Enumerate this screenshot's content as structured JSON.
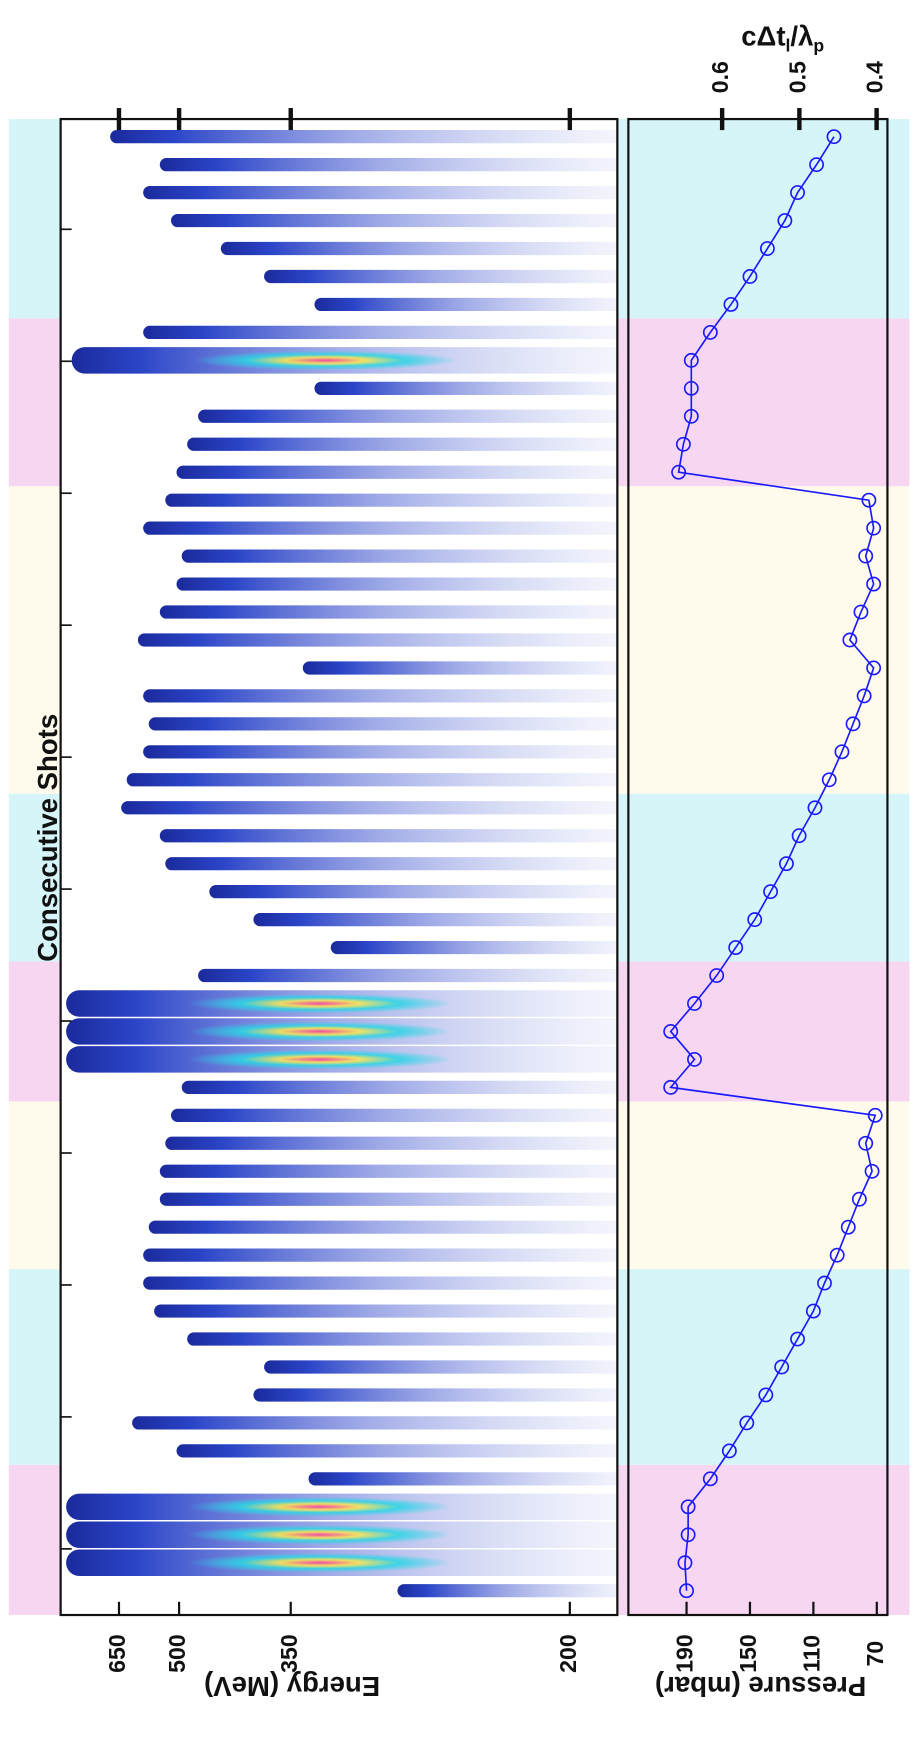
{
  "chart_data": [
    {
      "type": "spectra",
      "title": "Consecutive Shots",
      "xlabel": "Energy (MeV)",
      "xscale": "reciprocal",
      "xlim": [
        917,
        186.4
      ],
      "xticks": [
        650,
        500,
        350,
        200
      ],
      "shotlim": [
        0.13,
        53.63
      ],
      "color": "#1b2a9c",
      "peak_energy": [
        272,
        883,
        883,
        883,
        334,
        505,
        610,
        389,
        377,
        485,
        553,
        580,
        580,
        566,
        540,
        540,
        528,
        516,
        495,
        883,
        883,
        883,
        466,
        316,
        389,
        448,
        528,
        540,
        643,
        626,
        580,
        566,
        580,
        339,
        594,
        540,
        505,
        495,
        580,
        528,
        505,
        485,
        466,
        329,
        851,
        580,
        329,
        377,
        431,
        516,
        580,
        540,
        680
      ],
      "bands": [
        {
          "from": 1,
          "to": 5,
          "color": "#f7d6f1"
        },
        {
          "from": 6,
          "to": 12,
          "color": "#d6f5f8"
        },
        {
          "from": 13,
          "to": 18,
          "color": "#fefbec"
        },
        {
          "from": 19,
          "to": 23,
          "color": "#f7d6f1"
        },
        {
          "from": 24,
          "to": 29,
          "color": "#d6f5f8"
        },
        {
          "from": 30,
          "to": 40,
          "color": "#fefbec"
        },
        {
          "from": 41,
          "to": 46,
          "color": "#f7d6f1"
        },
        {
          "from": 47,
          "to": 53,
          "color": "#d6f5f8"
        }
      ]
    },
    {
      "type": "line",
      "ylabel": "Pressure (mbar)",
      "y2label": [
        "cΔt",
        "l",
        "/λ",
        "p"
      ],
      "categories": [
        null,
        null,
        null,
        null,
        null,
        null,
        null,
        null,
        null,
        null,
        null,
        null,
        null,
        null,
        null,
        null,
        null,
        null,
        null,
        null,
        null,
        null,
        null,
        null,
        null,
        null,
        null,
        null,
        null,
        null,
        null,
        null,
        null,
        null,
        null,
        null,
        null,
        null,
        null,
        null,
        null,
        null,
        null,
        null,
        null,
        null,
        null,
        null,
        null,
        null,
        null,
        null,
        null
      ],
      "xlim": [
        0.13,
        53.63
      ],
      "ylim": [
        63.3,
        226.7
      ],
      "yticks": [
        190,
        150,
        110,
        70
      ],
      "y2lim": [
        0.386,
        0.7214
      ],
      "y2ticks": [
        0.6,
        0.5,
        0.4
      ],
      "series": [
        {
          "color": "#1a1aff",
          "values": [
            190,
            191,
            189,
            189,
            175,
            163,
            152,
            140,
            130,
            120,
            110,
            103,
            95,
            88,
            81,
            73,
            77,
            71,
            200,
            185,
            200,
            185,
            171,
            159,
            147,
            137,
            127,
            119,
            109,
            100,
            92,
            85,
            78,
            72,
            87,
            80,
            72,
            77,
            72,
            75,
            195,
            192,
            187,
            187,
            187,
            175,
            162,
            150,
            139,
            128,
            120,
            108,
            97
          ]
        }
      ]
    }
  ]
}
